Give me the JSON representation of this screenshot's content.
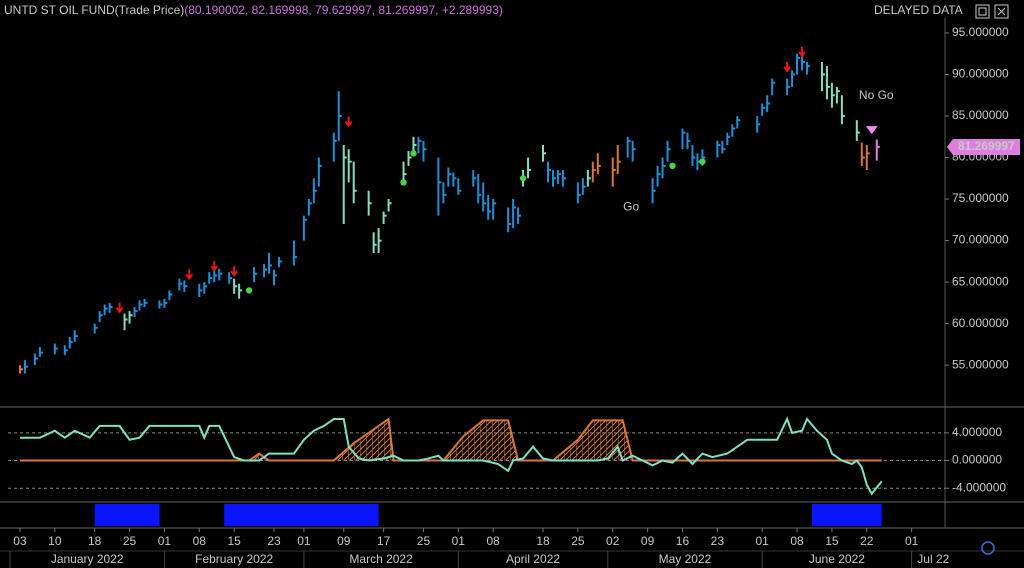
{
  "header": {
    "title": "UNTD ST OIL FUND(Trade Price)",
    "quote": "(80.190002, 82.169998, 79.629997, 81.269997, +2.289993)",
    "status": "DELAYED DATA"
  },
  "chart_data": [
    {
      "type": "ohlc",
      "ylim": [
        50.2,
        96.8
      ],
      "yticks": [
        {
          "value": 55,
          "label": "55.000000"
        },
        {
          "value": 60,
          "label": "60.000000"
        },
        {
          "value": 65,
          "label": "65.000000"
        },
        {
          "value": 70,
          "label": "70.000000"
        },
        {
          "value": 75,
          "label": "75.000000"
        },
        {
          "value": 80,
          "label": "80.000000"
        },
        {
          "value": 85,
          "label": "85.000000"
        },
        {
          "value": 90,
          "label": "90.000000"
        },
        {
          "value": 95,
          "label": "95.000000"
        }
      ],
      "last": {
        "value": 81.269997,
        "label": "81.269997",
        "color": "#e07ee0"
      },
      "series": [
        {
          "color": "#1f8fd6",
          "x": [
            4,
            6,
            7,
            10,
            12,
            13,
            14,
            18,
            19,
            20,
            21,
            26,
            27,
            28,
            31,
            32,
            33,
            35,
            36,
            39,
            40,
            41,
            42,
            43,
            45,
            50,
            52,
            53,
            54,
            55,
            58,
            60,
            61,
            62,
            63,
            66,
            67,
            83,
            84,
            87,
            88,
            89,
            90,
            91,
            94,
            95,
            96,
            97,
            98,
            101,
            102,
            103,
            109,
            110,
            111,
            112,
            115,
            116,
            125,
            126,
            130,
            131,
            132,
            133,
            136,
            137,
            138,
            139,
            140,
            143,
            144,
            145,
            146,
            147,
            151,
            152,
            153,
            154,
            157,
            158,
            159,
            160,
            161
          ],
          "close": [
            54.8,
            55.8,
            56.5,
            57.0,
            56.8,
            57.8,
            58.5,
            59.5,
            61.0,
            61.8,
            62.0,
            61.5,
            62.3,
            62.5,
            62.3,
            62.5,
            63.5,
            64.8,
            64.5,
            64.0,
            64.5,
            65.5,
            65.8,
            66.0,
            65.5,
            66.0,
            66.5,
            67.0,
            65.8,
            67.5,
            68.0,
            72.5,
            74.5,
            76.0,
            79.0,
            82.0,
            85.0,
            82.0,
            81.0,
            77.0,
            75.5,
            78.0,
            77.5,
            76.0,
            77.5,
            75.5,
            74.5,
            73.5,
            74.5,
            72.0,
            74.0,
            73.0,
            78.5,
            77.5,
            78.0,
            77.5,
            75.5,
            76.5,
            82.0,
            81.0,
            76.0,
            78.0,
            79.0,
            81.0,
            83.0,
            82.0,
            80.0,
            79.5,
            80.0,
            81.5,
            81.0,
            82.5,
            83.5,
            84.5,
            84.0,
            86.0,
            86.5,
            89.0,
            88.5,
            90.0,
            92.0,
            91.5,
            91.0
          ],
          "high": [
            55.6,
            56.4,
            57.2,
            57.6,
            57.4,
            58.4,
            59.2,
            60.0,
            61.5,
            62.3,
            62.5,
            62.0,
            62.8,
            63.0,
            62.8,
            63.0,
            64.0,
            65.4,
            65.2,
            64.8,
            65.0,
            66.2,
            66.4,
            66.6,
            66.2,
            66.8,
            67.2,
            68.5,
            66.5,
            68.0,
            70.0,
            73.0,
            75.0,
            77.5,
            80.0,
            83.0,
            88.0,
            82.5,
            82.0,
            80.0,
            77.0,
            78.8,
            78.2,
            77.5,
            78.5,
            78.0,
            77.0,
            75.5,
            75.0,
            74.0,
            75.0,
            74.0,
            79.5,
            78.5,
            78.5,
            78.5,
            77.0,
            77.5,
            82.5,
            82.0,
            77.5,
            79.0,
            80.0,
            82.0,
            83.5,
            83.0,
            81.5,
            80.5,
            81.0,
            82.0,
            82.0,
            83.0,
            84.0,
            85.0,
            85.0,
            86.5,
            87.5,
            89.5,
            89.5,
            90.5,
            92.5,
            92.5,
            91.5
          ],
          "low": [
            54.0,
            55.0,
            56.0,
            56.3,
            56.2,
            57.0,
            57.8,
            58.8,
            60.2,
            61.0,
            61.3,
            60.8,
            61.6,
            62.0,
            61.8,
            61.9,
            62.8,
            64.0,
            63.8,
            63.2,
            63.6,
            64.8,
            65.0,
            65.2,
            64.8,
            65.0,
            65.6,
            66.0,
            64.6,
            66.8,
            67.0,
            70.0,
            73.0,
            74.5,
            76.5,
            79.5,
            82.0,
            80.5,
            79.5,
            73.0,
            74.5,
            76.5,
            76.5,
            75.5,
            76.5,
            74.5,
            73.5,
            72.5,
            72.5,
            71.0,
            71.5,
            72.0,
            77.0,
            76.5,
            76.8,
            76.5,
            74.5,
            75.5,
            80.0,
            79.5,
            74.5,
            76.5,
            77.5,
            79.5,
            81.0,
            81.0,
            79.0,
            78.5,
            79.0,
            80.0,
            80.5,
            81.5,
            82.5,
            83.5,
            83.0,
            85.0,
            85.5,
            87.5,
            87.5,
            88.5,
            90.0,
            90.5,
            90.0
          ]
        },
        {
          "color": "#86dcc0",
          "x": [
            24,
            25,
            46,
            47,
            68,
            69,
            70,
            73,
            74,
            75,
            76,
            77,
            80,
            81,
            82,
            104,
            105,
            108,
            117,
            164,
            165,
            166,
            167,
            168,
            171
          ],
          "close": [
            60.5,
            61.0,
            64.5,
            64.0,
            80.0,
            79.5,
            76.0,
            74.5,
            69.5,
            70.0,
            73.0,
            74.5,
            78.0,
            80.0,
            81.5,
            77.5,
            78.5,
            80.5,
            77.5,
            90.0,
            88.5,
            87.5,
            88.0,
            85.0,
            83.0
          ],
          "high": [
            61.2,
            61.5,
            65.4,
            64.8,
            81.5,
            81.0,
            79.5,
            76.0,
            71.0,
            71.5,
            73.5,
            75.0,
            79.5,
            80.8,
            82.5,
            78.5,
            80.0,
            81.5,
            78.5,
            91.5,
            91.0,
            89.0,
            88.5,
            87.5,
            84.5
          ],
          "low": [
            59.2,
            60.0,
            63.6,
            63.0,
            72.0,
            77.0,
            74.5,
            73.0,
            68.5,
            68.5,
            72.0,
            73.5,
            77.0,
            79.0,
            80.5,
            76.5,
            77.5,
            79.5,
            76.5,
            88.0,
            87.0,
            86.0,
            86.5,
            84.0,
            82.0
          ]
        },
        {
          "color": "#d9773a",
          "x": [
            3,
            118,
            119,
            122,
            123,
            172,
            173
          ],
          "close": [
            54.5,
            78.5,
            79.0,
            78.5,
            79.5,
            80.0,
            80.5
          ],
          "high": [
            55.0,
            79.5,
            80.5,
            80.0,
            81.5,
            81.8,
            81.5
          ],
          "low": [
            54.0,
            77.0,
            78.0,
            76.5,
            78.0,
            79.0,
            78.5
          ]
        },
        {
          "color": "#e07ee0",
          "x": [
            175
          ],
          "close": [
            81.269997
          ],
          "high": [
            82.169998
          ],
          "low": [
            79.629997
          ]
        }
      ],
      "markers": [
        {
          "shape": "arrow-down",
          "color": "#e8141b",
          "x": [
            23,
            37,
            42,
            46,
            69,
            157,
            160
          ],
          "y": [
            61.8,
            65.8,
            66.8,
            66.2,
            84.2,
            90.8,
            92.6
          ]
        },
        {
          "shape": "dot",
          "color": "#4ad34a",
          "x": [
            49,
            80,
            82,
            104,
            134,
            140
          ],
          "y": [
            64.0,
            77.0,
            80.5,
            77.5,
            79.0,
            79.5
          ]
        },
        {
          "shape": "triangle",
          "color": "#f08cf0",
          "x": [
            174
          ],
          "y": [
            83.3
          ]
        }
      ],
      "annotations": [
        {
          "text": "Go",
          "x": 125.7,
          "y": 74.0,
          "color": "#3fc6d6"
        },
        {
          "text": "No Go",
          "x": 174.9,
          "y": 87.4,
          "color": "#e040e0"
        }
      ]
    },
    {
      "type": "line",
      "ylim": [
        -5.7,
        7.3
      ],
      "yticks": [
        {
          "value": 4,
          "label": "4.000000"
        },
        {
          "value": 0,
          "label": "0.000000"
        },
        {
          "value": -4,
          "label": "-4.000000"
        }
      ],
      "series": [
        {
          "color": "#d9773a",
          "fill": "hatch",
          "x": [
            3,
            49,
            51,
            53,
            66,
            70,
            74,
            77,
            78,
            88,
            92,
            96,
            101,
            103,
            110,
            115,
            118,
            124,
            126,
            176
          ],
          "values": [
            0,
            0,
            1,
            0,
            0,
            2.5,
            4.5,
            6,
            0,
            0,
            3.5,
            5.8,
            5.8,
            0,
            0,
            3,
            5.8,
            5.8,
            0,
            0
          ]
        },
        {
          "color": "#7fe0c8",
          "x": [
            3,
            7,
            10,
            12,
            14,
            17,
            19,
            23,
            25,
            27,
            29,
            39,
            40,
            41,
            43,
            46,
            48,
            51,
            53,
            56,
            58,
            60,
            62,
            64,
            66,
            68,
            69,
            71,
            73,
            76,
            78,
            80,
            83,
            85,
            87,
            88,
            91,
            93,
            96,
            99,
            101,
            102,
            104,
            106,
            108,
            110,
            113,
            119,
            121,
            123,
            124,
            126,
            128,
            130,
            132,
            134,
            136,
            138,
            140,
            142,
            145,
            147,
            149,
            155,
            157,
            158,
            160,
            161,
            163,
            165,
            166,
            168,
            170,
            171,
            172,
            173,
            174,
            176
          ],
          "values": [
            3.3,
            3.3,
            4.3,
            3.3,
            4.3,
            3.3,
            5,
            5,
            3,
            3.3,
            5,
            5,
            3.3,
            5,
            5,
            0.5,
            0,
            0,
            1,
            1,
            1,
            3,
            4.3,
            5,
            6,
            6,
            2,
            0.3,
            0,
            0.3,
            0.7,
            0,
            0,
            0.3,
            0.7,
            0,
            0,
            0,
            0,
            -0.5,
            -1.5,
            0,
            0.3,
            2,
            0.3,
            0,
            0,
            0,
            0.3,
            2,
            0,
            0.7,
            0,
            -0.7,
            0,
            -0.3,
            1,
            -0.5,
            1,
            0.5,
            1,
            2,
            3,
            3,
            6,
            4,
            4.3,
            6,
            4.3,
            3,
            1,
            0,
            -0.5,
            0,
            -1,
            -3.5,
            -4.8,
            -3
          ]
        }
      ]
    },
    {
      "type": "band",
      "color": "#0a14ff",
      "x_start": [
        18,
        44,
        162
      ],
      "x_end": [
        31,
        75,
        176
      ],
      "xlim": [
        0.6,
        188.7
      ],
      "xticks": [
        {
          "value": 3,
          "label": "03"
        },
        {
          "value": 10,
          "label": "10"
        },
        {
          "value": 18,
          "label": "18"
        },
        {
          "value": 25,
          "label": "25"
        },
        {
          "value": 32,
          "label": "01"
        },
        {
          "value": 39,
          "label": "08"
        },
        {
          "value": 46,
          "label": "15"
        },
        {
          "value": 54,
          "label": "23"
        },
        {
          "value": 60,
          "label": "01"
        },
        {
          "value": 68,
          "label": "09"
        },
        {
          "value": 76,
          "label": "17"
        },
        {
          "value": 84,
          "label": "25"
        },
        {
          "value": 91,
          "label": "01"
        },
        {
          "value": 98,
          "label": "08"
        },
        {
          "value": 108,
          "label": "18"
        },
        {
          "value": 115,
          "label": "25"
        },
        {
          "value": 122,
          "label": "02"
        },
        {
          "value": 129,
          "label": "09"
        },
        {
          "value": 136,
          "label": "16"
        },
        {
          "value": 143,
          "label": "23"
        },
        {
          "value": 152,
          "label": "01"
        },
        {
          "value": 159,
          "label": "08"
        },
        {
          "value": 166,
          "label": "15"
        },
        {
          "value": 173,
          "label": "22"
        },
        {
          "value": 182,
          "label": "01"
        }
      ],
      "months": [
        {
          "value": 1,
          "label": "January 2022"
        },
        {
          "value": 32,
          "label": "February 2022"
        },
        {
          "value": 60,
          "label": "March 2022"
        },
        {
          "value": 91,
          "label": "April 2022"
        },
        {
          "value": 121,
          "label": "May 2022"
        },
        {
          "value": 152,
          "label": "June 2022"
        },
        {
          "value": 182,
          "label": "Jul 22"
        }
      ]
    }
  ]
}
